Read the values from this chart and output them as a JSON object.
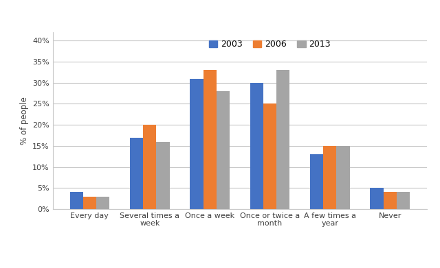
{
  "categories": [
    "Every day",
    "Several times a\nweek",
    "Once a week",
    "Once or twice a\nmonth",
    "A few times a\nyear",
    "Never"
  ],
  "series": {
    "2003": [
      4,
      17,
      31,
      30,
      13,
      5
    ],
    "2006": [
      3,
      20,
      33,
      25,
      15,
      4
    ],
    "2013": [
      3,
      16,
      28,
      33,
      15,
      4
    ]
  },
  "colors": {
    "2003": "#4472C4",
    "2006": "#ED7D31",
    "2013": "#A5A5A5"
  },
  "ylabel": "% of people",
  "ylim": [
    0,
    42
  ],
  "yticks": [
    0,
    5,
    10,
    15,
    20,
    25,
    30,
    35,
    40
  ],
  "ytick_labels": [
    "0%",
    "5%",
    "10%",
    "15%",
    "20%",
    "25%",
    "30%",
    "35%",
    "40%"
  ],
  "legend_labels": [
    "2003",
    "2006",
    "2013"
  ],
  "bar_width": 0.22,
  "background_color": "#FFFFFF",
  "grid_color": "#C8C8C8"
}
